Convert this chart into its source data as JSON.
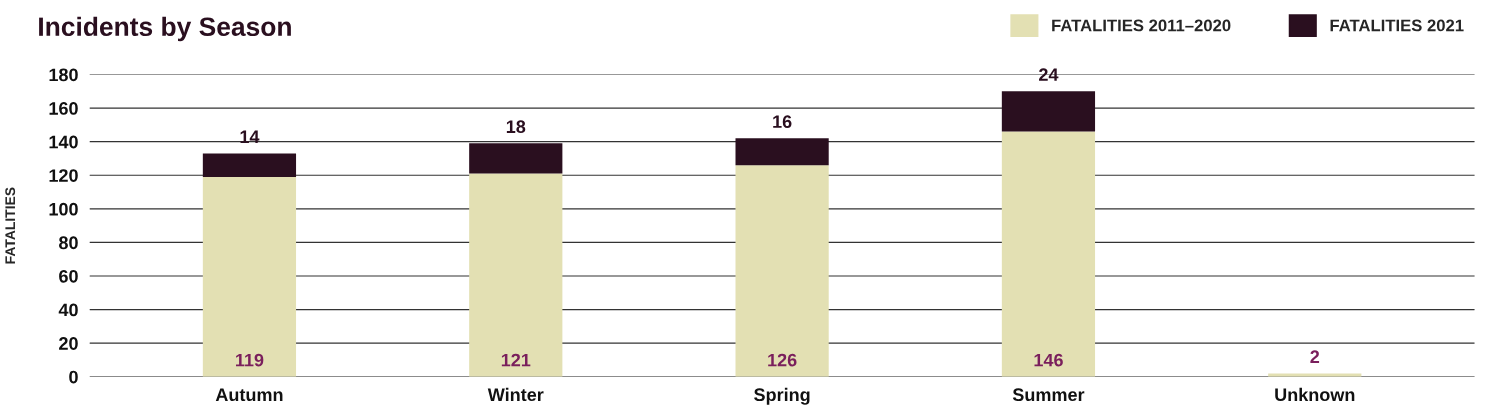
{
  "chart_data": {
    "type": "bar",
    "title": "Incidents by Season",
    "ylabel": "FATALITIES",
    "categories": [
      "Autumn",
      "Winter",
      "Spring",
      "Summer",
      "Unknown"
    ],
    "stacked": true,
    "series": [
      {
        "name": "FATALITIES 2011–2020",
        "color": "#e3e0b3",
        "values": [
          119,
          121,
          126,
          146,
          2
        ],
        "value_labels": [
          "119",
          "121",
          "126",
          "146",
          "2"
        ]
      },
      {
        "name": "FATALITIES 2021",
        "color": "#2a0f1f",
        "values": [
          14,
          18,
          16,
          24,
          null
        ],
        "value_labels": [
          "14",
          "18",
          "16",
          "24",
          null
        ]
      }
    ],
    "ylim": [
      0,
      180
    ],
    "yticks": [
      0,
      20,
      40,
      60,
      80,
      100,
      120,
      140,
      160,
      180
    ],
    "grid": "y",
    "legend": "top right"
  }
}
